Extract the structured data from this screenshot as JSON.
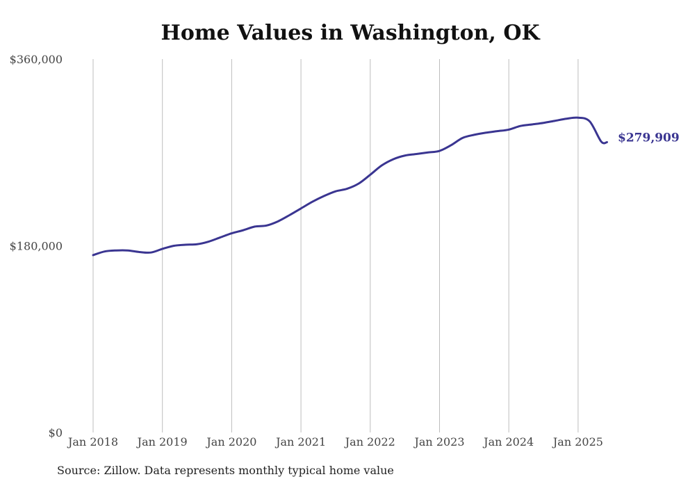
{
  "chart_data": {
    "type": "line",
    "title": "Home Values in Washington, OK",
    "source": "Source: Zillow. Data represents monthly typical home value",
    "ylim": [
      0,
      360000
    ],
    "yticks": [
      {
        "value": 0,
        "label": "$0"
      },
      {
        "value": 180000,
        "label": "$180,000"
      },
      {
        "value": 360000,
        "label": "$360,000"
      }
    ],
    "xticks": [
      {
        "value": "2018-01",
        "label": "Jan 2018"
      },
      {
        "value": "2019-01",
        "label": "Jan 2019"
      },
      {
        "value": "2020-01",
        "label": "Jan 2020"
      },
      {
        "value": "2021-01",
        "label": "Jan 2021"
      },
      {
        "value": "2022-01",
        "label": "Jan 2022"
      },
      {
        "value": "2023-01",
        "label": "Jan 2023"
      },
      {
        "value": "2024-01",
        "label": "Jan 2024"
      },
      {
        "value": "2025-01",
        "label": "Jan 2025"
      }
    ],
    "xgrid": true,
    "ygrid": false,
    "series_color": "#3a3591",
    "end_label": "$279,909",
    "series": [
      {
        "x": [
          "2018-01",
          "2018-03",
          "2018-05",
          "2018-07",
          "2018-09",
          "2018-11",
          "2019-01",
          "2019-03",
          "2019-05",
          "2019-07",
          "2019-09",
          "2019-11",
          "2020-01",
          "2020-03",
          "2020-05",
          "2020-07",
          "2020-09",
          "2020-11",
          "2021-01",
          "2021-03",
          "2021-05",
          "2021-07",
          "2021-09",
          "2021-11",
          "2022-01",
          "2022-03",
          "2022-05",
          "2022-07",
          "2022-09",
          "2022-11",
          "2023-01",
          "2023-03",
          "2023-05",
          "2023-07",
          "2023-09",
          "2023-11",
          "2024-01",
          "2024-03",
          "2024-05",
          "2024-07",
          "2024-09",
          "2024-11",
          "2025-01",
          "2025-03",
          "2025-05",
          "2025-06"
        ],
        "values": [
          171000,
          174500,
          175500,
          175500,
          174000,
          173500,
          177000,
          180000,
          181000,
          181500,
          184000,
          188000,
          192000,
          195000,
          198500,
          199500,
          203500,
          209500,
          216000,
          222500,
          228000,
          232500,
          235000,
          240000,
          248500,
          257500,
          263500,
          267000,
          268500,
          270000,
          271500,
          277000,
          284000,
          287000,
          289000,
          290500,
          292000,
          295500,
          297000,
          298500,
          300500,
          302500,
          303500,
          300000,
          280500,
          279909
        ]
      }
    ]
  }
}
